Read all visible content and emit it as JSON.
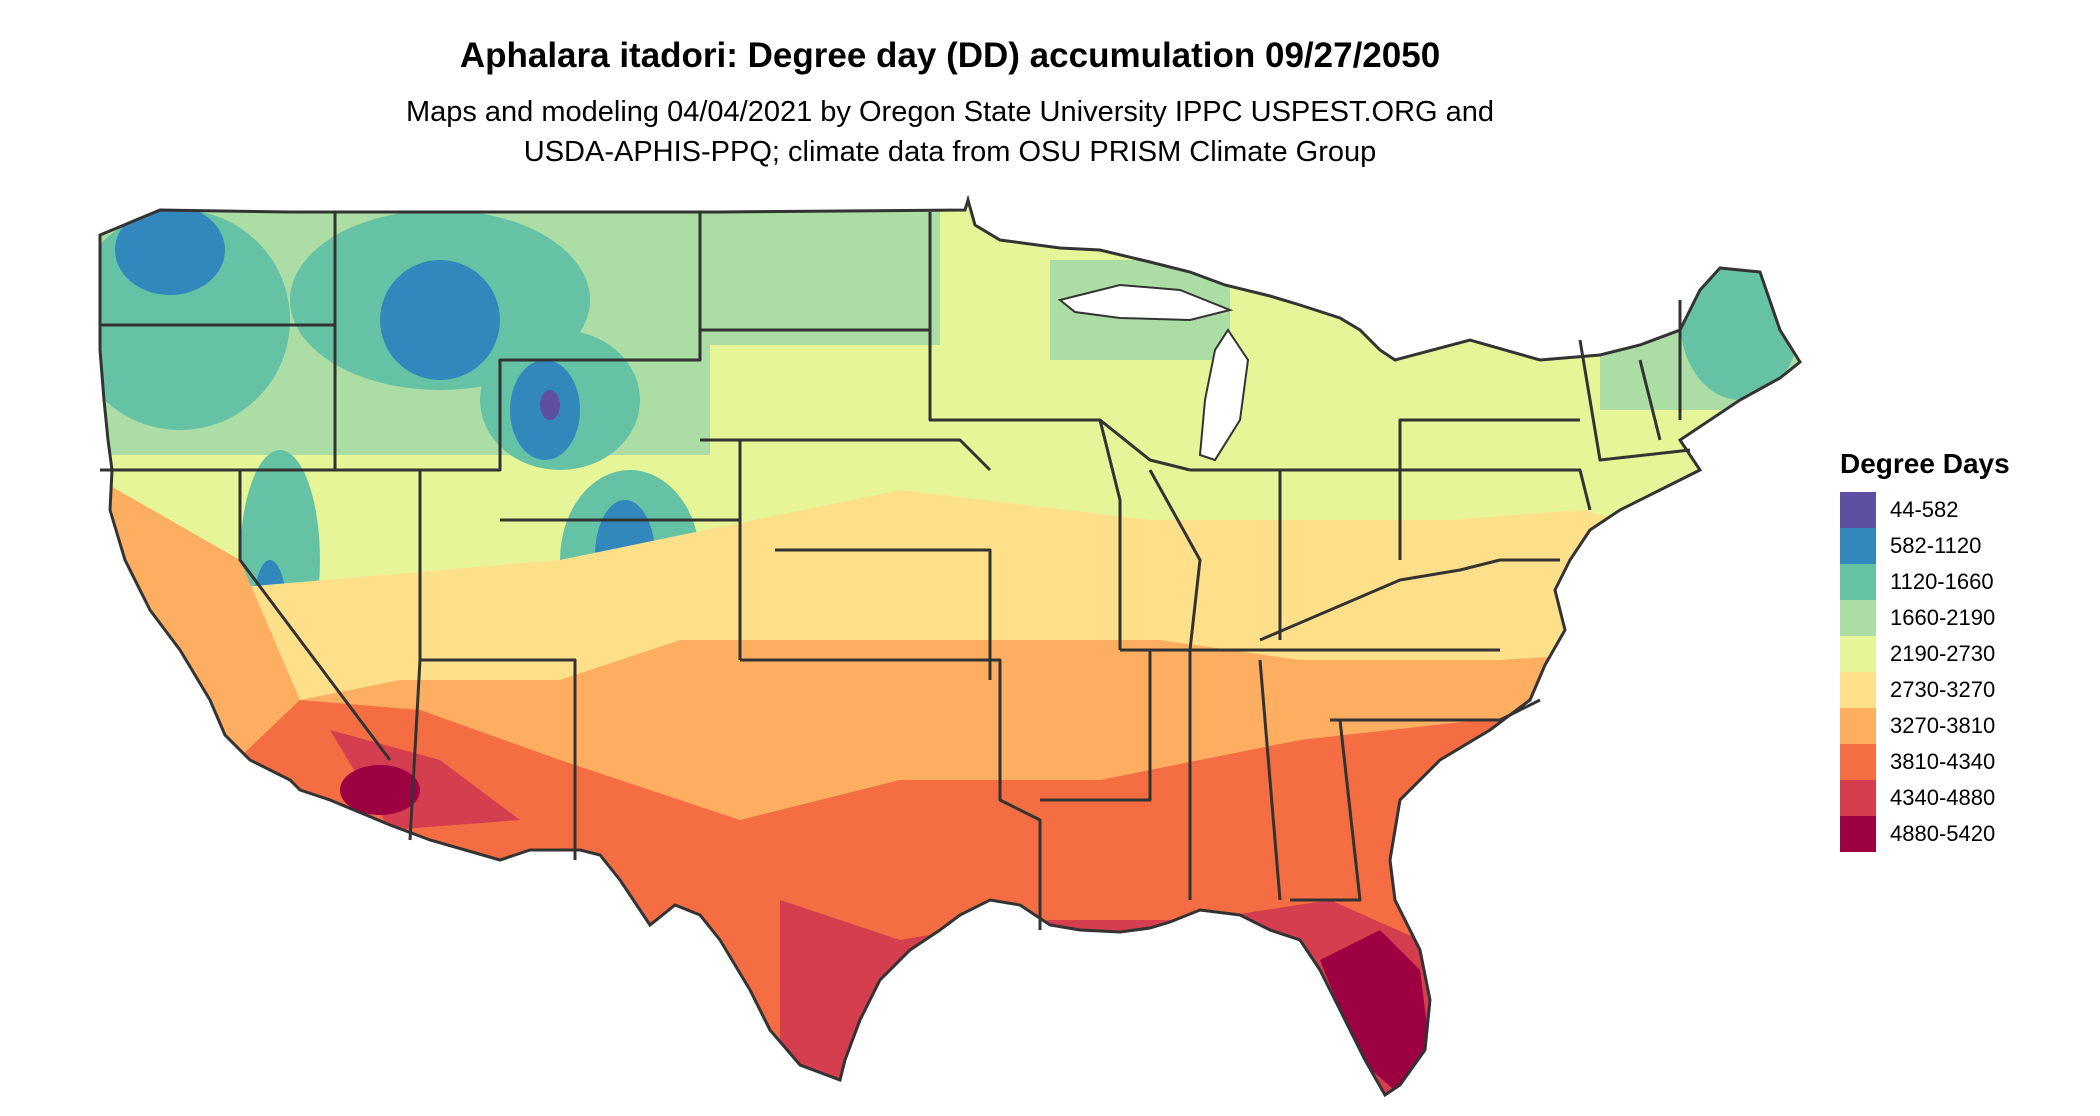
{
  "title": "Aphalara itadori: Degree day (DD) accumulation 09/27/2050",
  "subtitle_line1": "Maps and modeling 04/04/2021 by Oregon State University IPPC USPEST.ORG and",
  "subtitle_line2": "USDA-APHIS-PPQ; climate data from OSU PRISM Climate Group",
  "legend": {
    "title": "Degree Days",
    "items": [
      {
        "label": "44-582",
        "color": "#5e4fa2"
      },
      {
        "label": "582-1120",
        "color": "#3288bd"
      },
      {
        "label": "1120-1660",
        "color": "#66c2a5"
      },
      {
        "label": "1660-2190",
        "color": "#abdda4"
      },
      {
        "label": "2190-2730",
        "color": "#e6f598"
      },
      {
        "label": "2730-3270",
        "color": "#fee08b"
      },
      {
        "label": "3270-3810",
        "color": "#fdae61"
      },
      {
        "label": "3810-4340",
        "color": "#f46d43"
      },
      {
        "label": "4340-4880",
        "color": "#d53e4f"
      },
      {
        "label": "4880-5420",
        "color": "#9e0142"
      }
    ]
  },
  "map": {
    "region": "Contiguous United States",
    "boundary_color": "#333333",
    "ocean_color": "#ffffff"
  }
}
